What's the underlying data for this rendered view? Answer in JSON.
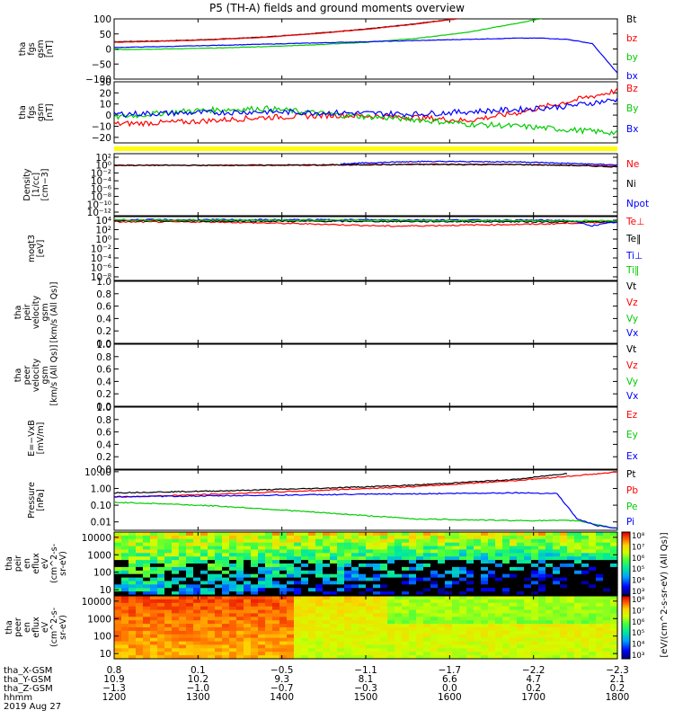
{
  "title": "P5 (TH-A) fields and ground moments overview",
  "chart_data": [
    {
      "id": "fgs_gsm",
      "type": "line",
      "ylabel": [
        "tha",
        "fgs",
        "gsm",
        "[nT]"
      ],
      "yrange": [
        -100,
        100
      ],
      "yticks": [
        "100",
        "50",
        "0",
        "−50",
        "−100"
      ],
      "series": [
        {
          "name": "Bt",
          "color": "#000000",
          "x": [
            0,
            0.1,
            0.2,
            0.3,
            0.4,
            0.5,
            0.6,
            0.7,
            0.75
          ],
          "y": [
            24,
            27,
            32,
            40,
            52,
            66,
            84,
            105,
            112
          ]
        },
        {
          "name": "bz",
          "color": "#ff0000",
          "x": [
            0,
            0.1,
            0.2,
            0.3,
            0.4,
            0.5,
            0.6,
            0.7,
            0.75
          ],
          "y": [
            22,
            26,
            31,
            39,
            51,
            65,
            83,
            104,
            110
          ]
        },
        {
          "name": "by",
          "color": "#00cc00",
          "x": [
            0,
            0.1,
            0.2,
            0.3,
            0.4,
            0.5,
            0.6,
            0.7,
            0.8,
            0.87
          ],
          "y": [
            -2,
            0,
            3,
            8,
            14,
            22,
            35,
            55,
            85,
            108
          ]
        },
        {
          "name": "bx",
          "color": "#0000ff",
          "x": [
            0,
            0.1,
            0.2,
            0.3,
            0.4,
            0.5,
            0.6,
            0.7,
            0.8,
            0.85,
            0.9,
            0.95,
            1.0
          ],
          "y": [
            5,
            8,
            12,
            16,
            20,
            24,
            28,
            32,
            36,
            36,
            32,
            18,
            -80
          ]
        }
      ]
    },
    {
      "id": "fgs_gsm_panel2",
      "type": "line",
      "ylabel": [
        "tha",
        "fgs",
        "gsm",
        "[nT]"
      ],
      "yrange": [
        -25,
        30
      ],
      "yticks": [
        "30",
        "20",
        "10",
        "0",
        "−10",
        "−20"
      ],
      "series": [
        {
          "name": "Bz",
          "color": "#ff0000",
          "x": [
            0,
            0.15,
            0.3,
            0.45,
            0.6,
            0.7,
            0.8,
            0.9,
            1.0
          ],
          "y": [
            -8,
            -6,
            -2,
            0,
            -2,
            -5,
            2,
            12,
            22
          ]
        },
        {
          "name": "By",
          "color": "#00cc00",
          "x": [
            0,
            0.15,
            0.3,
            0.45,
            0.6,
            0.7,
            0.8,
            0.9,
            1.0
          ],
          "y": [
            -2,
            4,
            6,
            0,
            -4,
            -8,
            -10,
            -13,
            -16
          ]
        },
        {
          "name": "Bx",
          "color": "#0000ff",
          "x": [
            0,
            0.15,
            0.3,
            0.45,
            0.6,
            0.7,
            0.8,
            0.9,
            1.0
          ],
          "y": [
            1,
            2,
            3,
            2,
            1,
            3,
            5,
            8,
            14
          ]
        }
      ]
    },
    {
      "id": "density",
      "type": "line",
      "ylabel": [
        "Density",
        "[1/cc]",
        "[cm−3]"
      ],
      "ylog": true,
      "ylim_exp": [
        -13,
        3
      ],
      "yticks": [
        "10²",
        "10⁰",
        "10⁻²",
        "10⁻⁴",
        "10⁻⁶",
        "10⁻⁸",
        "10⁻¹⁰",
        "10⁻¹²"
      ],
      "series": [
        {
          "name": "Ne",
          "color": "#ff0000",
          "x": [
            0,
            0.2,
            0.4,
            0.6,
            0.8,
            0.9,
            1.0
          ],
          "y_exp": [
            0,
            0,
            0,
            0.3,
            0.2,
            0,
            -0.2
          ]
        },
        {
          "name": "Ni",
          "color": "#000000",
          "x": [
            0,
            0.2,
            0.4,
            0.6,
            0.8,
            0.9,
            1.0
          ],
          "y_exp": [
            0,
            0,
            0.1,
            0.2,
            0.2,
            0,
            -0.4
          ]
        },
        {
          "name": "Npot",
          "color": "#0000ff",
          "x": [
            0.45,
            0.6,
            0.8,
            0.95,
            1.0
          ],
          "y_exp": [
            0.4,
            1.0,
            0.9,
            0.3,
            0.1
          ]
        }
      ]
    },
    {
      "id": "temperature",
      "type": "line",
      "ylabel": [
        "moqt3",
        "[eV]"
      ],
      "ylog": true,
      "ylim_exp": [
        -8,
        4
      ],
      "yticks": [
        "10⁴",
        "10²",
        "10⁰",
        "10⁻²",
        "10⁻⁴",
        "10⁻⁶",
        "10⁻⁸"
      ],
      "series": [
        {
          "name": "Te⊥",
          "color": "#ff0000",
          "x": [
            0,
            0.2,
            0.4,
            0.55,
            0.7,
            0.85,
            0.95,
            1.0
          ],
          "y_exp": [
            3.0,
            3.0,
            2.6,
            2.2,
            2.4,
            2.6,
            2.9,
            3.0
          ]
        },
        {
          "name": "Te‖",
          "color": "#000000",
          "x": [
            0,
            0.5,
            1.0
          ],
          "y_exp": [
            3.2,
            3.1,
            3.0
          ]
        },
        {
          "name": "Ti⊥",
          "color": "#0000ff",
          "x": [
            0,
            0.5,
            0.9,
            0.95,
            1.0
          ],
          "y_exp": [
            3.4,
            3.4,
            3.3,
            2.3,
            3.0
          ]
        },
        {
          "name": "Ti‖",
          "color": "#00cc00",
          "x": [
            0,
            0.5,
            1.0
          ],
          "y_exp": [
            3.35,
            3.3,
            3.2
          ]
        }
      ]
    },
    {
      "id": "peir_velocity",
      "type": "line",
      "ylabel": [
        "tha",
        "peir",
        "velocity",
        "gsm",
        "[km/s (All Qs)]"
      ],
      "yrange": [
        0,
        1
      ],
      "yticks": [
        "1.0",
        "0.8",
        "0.6",
        "0.4",
        "0.2",
        "0.0"
      ],
      "series": [
        {
          "name": "Vt",
          "color": "#000000"
        },
        {
          "name": "Vz",
          "color": "#ff0000"
        },
        {
          "name": "Vy",
          "color": "#00cc00"
        },
        {
          "name": "Vx",
          "color": "#0000ff"
        }
      ]
    },
    {
      "id": "peer_velocity",
      "type": "line",
      "ylabel": [
        "tha",
        "peer",
        "velocity",
        "gsm",
        "[km/s (All Qs)]"
      ],
      "yrange": [
        0,
        1
      ],
      "yticks": [
        "1.0",
        "0.8",
        "0.6",
        "0.4",
        "0.2",
        "0.0"
      ],
      "series": [
        {
          "name": "Vt",
          "color": "#000000"
        },
        {
          "name": "Vz",
          "color": "#ff0000"
        },
        {
          "name": "Vy",
          "color": "#00cc00"
        },
        {
          "name": "Vx",
          "color": "#0000ff"
        }
      ]
    },
    {
      "id": "efield",
      "type": "line",
      "ylabel": [
        "E=−VxB",
        "[mV/m]"
      ],
      "yrange": [
        0,
        1
      ],
      "yticks": [
        "1.0",
        "0.8",
        "0.6",
        "0.4",
        "0.2",
        "0.0"
      ],
      "series": [
        {
          "name": "Ez",
          "color": "#ff0000"
        },
        {
          "name": "Ey",
          "color": "#00cc00"
        },
        {
          "name": "Ex",
          "color": "#0000ff"
        }
      ]
    },
    {
      "id": "pressure",
      "type": "line",
      "ylabel": [
        "Pressure",
        "[nPa]"
      ],
      "ylog": true,
      "ylim_exp": [
        -2.5,
        1.1
      ],
      "yticks": [
        "10.00",
        "1.00",
        "0.10",
        "0.01"
      ],
      "ytick_exp": [
        1,
        0,
        -1,
        -2
      ],
      "series": [
        {
          "name": "Pt",
          "color": "#000000",
          "x": [
            0,
            0.2,
            0.4,
            0.6,
            0.8,
            0.9
          ],
          "y": [
            0.55,
            0.7,
            1.0,
            1.6,
            3.5,
            8.0
          ]
        },
        {
          "name": "Pb",
          "color": "#ff0000",
          "x": [
            0,
            0.2,
            0.4,
            0.6,
            0.8,
            0.95,
            1.0
          ],
          "y": [
            0.3,
            0.45,
            0.75,
            1.3,
            3.0,
            7.0,
            9.5
          ]
        },
        {
          "name": "Pe",
          "color": "#00cc00",
          "x": [
            0,
            0.1,
            0.2,
            0.3,
            0.45,
            0.6,
            0.8,
            0.92,
            1.0
          ],
          "y": [
            0.15,
            0.12,
            0.09,
            0.06,
            0.03,
            0.015,
            0.012,
            0.012,
            0.004
          ]
        },
        {
          "name": "Pi",
          "color": "#0000ff",
          "x": [
            0,
            0.2,
            0.4,
            0.6,
            0.8,
            0.88,
            0.92,
            0.96,
            1.0
          ],
          "y": [
            0.32,
            0.36,
            0.42,
            0.48,
            0.55,
            0.5,
            0.015,
            0.006,
            0.004
          ]
        }
      ]
    },
    {
      "id": "peir_eflux",
      "type": "heatmap",
      "ylabel": [
        "tha",
        "peir",
        "en",
        "eflux",
        "eV",
        "(cm^2-s-",
        "sr-eV)"
      ],
      "yticks": [
        "10000",
        "1000",
        "100",
        "10"
      ],
      "ytick_exp": [
        4,
        3,
        2,
        1
      ],
      "ylim_exp": [
        0.7,
        4.3
      ],
      "colorbar_label": "[eV/(cm^2-s-sr-eV) (All Qs)]",
      "colorbar_ticks": [
        "10⁸",
        "10⁷",
        "10⁶",
        "10⁵",
        "10⁴",
        "10³"
      ]
    },
    {
      "id": "peer_eflux",
      "type": "heatmap",
      "ylabel": [
        "tha",
        "peer",
        "en",
        "eflux",
        "eV",
        "(cm^2-s-",
        "sr-eV)"
      ],
      "yticks": [
        "10000",
        "1000",
        "100",
        "10"
      ],
      "ytick_exp": [
        4,
        3,
        2,
        1
      ],
      "ylim_exp": [
        0.7,
        4.3
      ],
      "colorbar_label": "[eV/(cm^2-s-sr-eV)]",
      "colorbar_ticks": [
        "10⁸",
        "10⁷",
        "10⁶",
        "10⁵",
        "10⁴",
        "10³"
      ]
    }
  ],
  "x_axis": {
    "row_labels": [
      "tha_X-GSM",
      "tha_Y-GSM",
      "tha_Z-GSM",
      "hhmm",
      "2019 Aug 27"
    ],
    "columns": [
      {
        "x": "0.8",
        "y": "10.9",
        "z": "−1.3",
        "t": "1200"
      },
      {
        "x": "0.1",
        "y": "10.2",
        "z": "−1.0",
        "t": "1300"
      },
      {
        "x": "−0.5",
        "y": "9.3",
        "z": "−0.7",
        "t": "1400"
      },
      {
        "x": "−1.1",
        "y": "8.1",
        "z": "−0.3",
        "t": "1500"
      },
      {
        "x": "−1.7",
        "y": "6.6",
        "z": "0.0",
        "t": "1600"
      },
      {
        "x": "−2.2",
        "y": "4.7",
        "z": "0.2",
        "t": "1700"
      },
      {
        "x": "−2.3",
        "y": "2.1",
        "z": "0.2",
        "t": "1800"
      }
    ]
  },
  "yellow_bar_color": "#ffff00"
}
